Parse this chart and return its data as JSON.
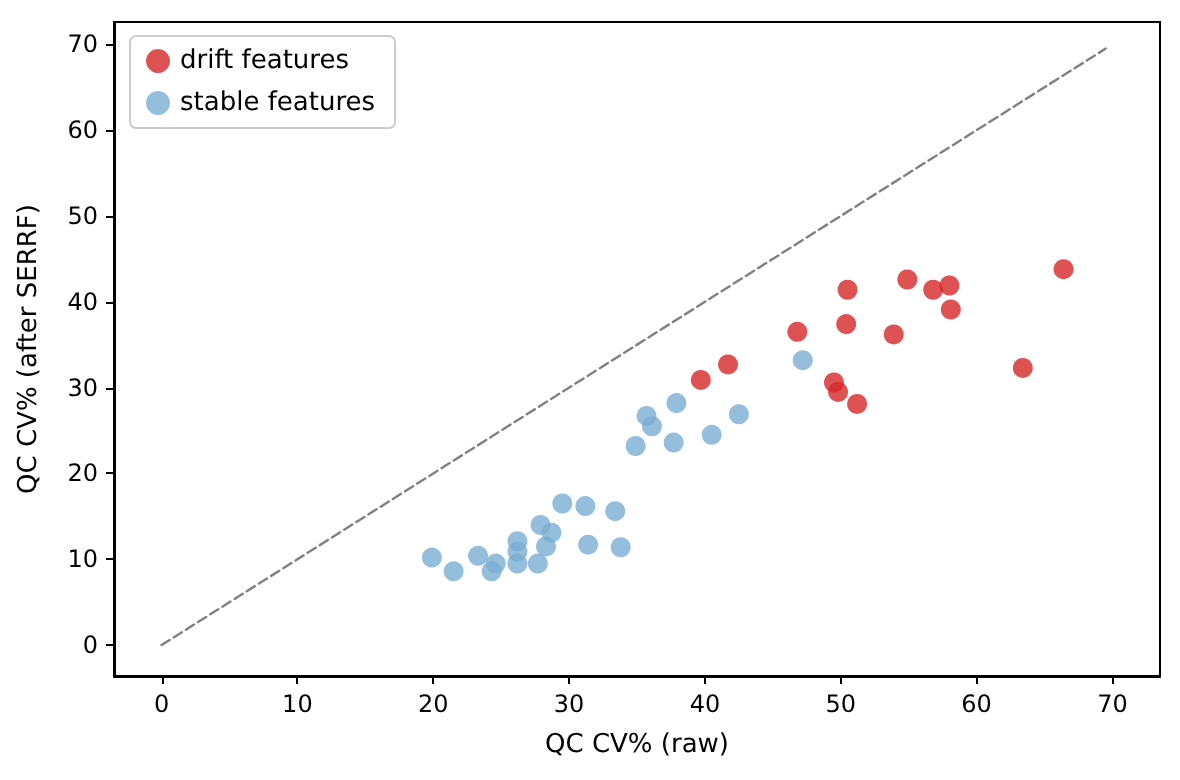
{
  "chart_data": {
    "type": "scatter",
    "xlabel": "QC CV% (raw)",
    "ylabel": "QC CV% (after SERRF)",
    "xlim": [
      -3.5,
      73.5
    ],
    "ylim": [
      -3.6,
      72.6
    ],
    "xticks": [
      0,
      10,
      20,
      30,
      40,
      50,
      60,
      70
    ],
    "yticks": [
      0,
      10,
      20,
      30,
      40,
      50,
      60,
      70
    ],
    "grid": false,
    "legend": "top left",
    "marker": "circle",
    "series": [
      {
        "name": "drift features",
        "color": "#d62728",
        "x": [
          39.7,
          41.7,
          46.8,
          50.5,
          50.4,
          53.9,
          54.9,
          56.8,
          58.0,
          58.1,
          49.5,
          49.8,
          51.2,
          63.4,
          66.4
        ],
        "values": [
          30.9,
          32.7,
          36.5,
          41.4,
          37.4,
          36.2,
          42.6,
          41.4,
          41.9,
          39.1,
          30.6,
          29.5,
          28.1,
          32.3,
          43.8
        ]
      },
      {
        "name": "stable features",
        "color": "#79aed3",
        "x": [
          19.9,
          21.5,
          23.3,
          24.3,
          24.6,
          26.2,
          26.2,
          26.2,
          27.7,
          27.9,
          28.3,
          28.7,
          29.5,
          31.2,
          31.4,
          33.4,
          33.8,
          34.9,
          35.7,
          36.1,
          37.7,
          37.9,
          40.5,
          42.5,
          47.2
        ],
        "values": [
          10.2,
          8.6,
          10.4,
          8.6,
          9.5,
          9.5,
          12.1,
          10.9,
          9.5,
          14.0,
          11.5,
          13.1,
          16.5,
          16.2,
          11.7,
          15.6,
          11.4,
          23.2,
          26.7,
          25.5,
          23.6,
          28.2,
          24.5,
          26.9,
          33.2
        ]
      },
      {
        "type": "line",
        "color": "#808080",
        "line_style": "dashed",
        "marker": "none",
        "x": [
          0,
          69.5
        ],
        "values": [
          0,
          69.5
        ]
      }
    ]
  }
}
